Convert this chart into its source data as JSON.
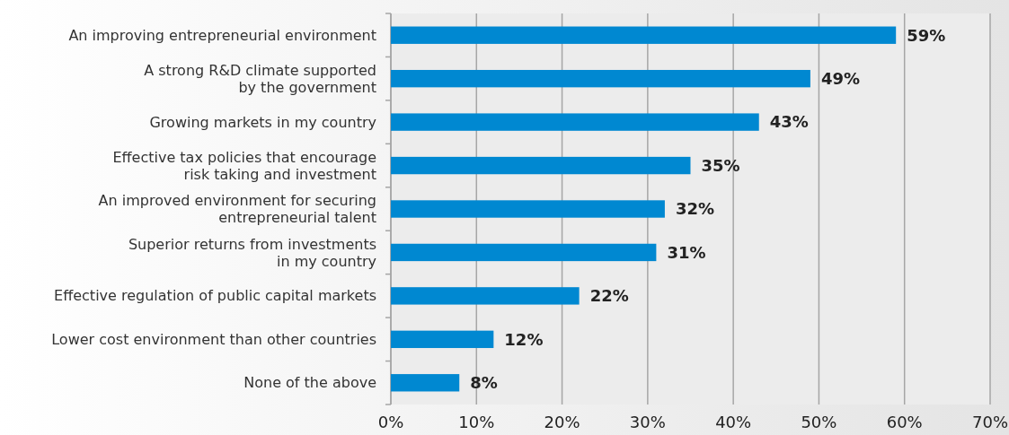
{
  "chart_data": {
    "type": "bar",
    "orientation": "horizontal",
    "categories": [
      "An improving entrepreneurial environment",
      "A strong R&D climate supported\nby the government",
      "Growing markets in my country",
      "Effective tax policies that encourage\nrisk taking and investment",
      "An improved environment for securing\nentrepreneurial talent",
      "Superior returns from investments\nin my country",
      "Effective regulation of public capital markets",
      "Lower cost environment than other countries",
      "None of the above"
    ],
    "values": [
      59,
      49,
      43,
      35,
      32,
      31,
      22,
      12,
      8
    ],
    "value_labels": [
      "59%",
      "49%",
      "43%",
      "35%",
      "32%",
      "31%",
      "22%",
      "12%",
      "8%"
    ],
    "color": "#0088d1",
    "xlim": [
      0,
      70
    ],
    "xticks": [
      {
        "value": 0,
        "label": "0%"
      },
      {
        "value": 10,
        "label": "10%"
      },
      {
        "value": 20,
        "label": "20%"
      },
      {
        "value": 30,
        "label": "30%"
      },
      {
        "value": 40,
        "label": "40%"
      },
      {
        "value": 50,
        "label": "50%"
      },
      {
        "value": 60,
        "label": "60%"
      },
      {
        "value": 70,
        "label": "70%"
      }
    ],
    "grid": "x"
  }
}
